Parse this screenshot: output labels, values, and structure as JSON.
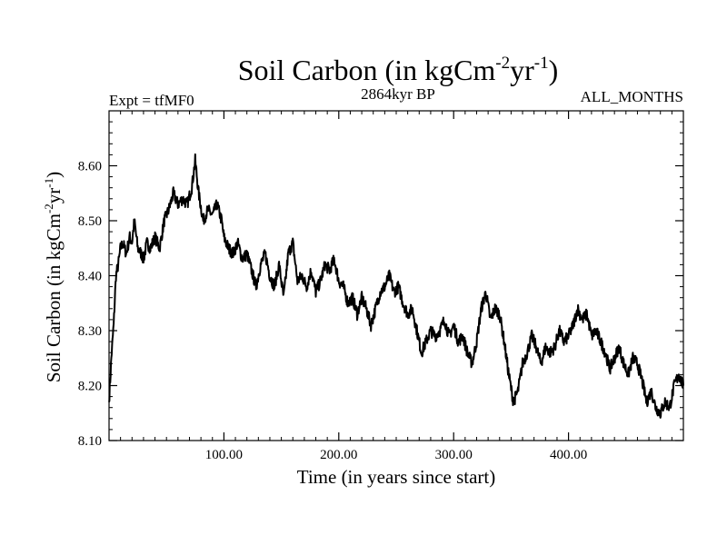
{
  "chart_data": {
    "type": "line",
    "title": {
      "main": "Soil Carbon (in kgCm",
      "sup1": "-2",
      "mid": "yr",
      "sup2": "-1",
      "end": ")"
    },
    "subtitle_left": "Expt = tfMF0",
    "subtitle_center": "2864kyr BP",
    "subtitle_right": "ALL_MONTHS",
    "xlabel": "Time (in years since start)",
    "ylabel": {
      "main": "Soil Carbon (in kgCm",
      "sup1": "-2",
      "mid": "yr",
      "sup2": "-1",
      "end": ")"
    },
    "xlim": [
      0,
      500
    ],
    "ylim": [
      8.1,
      8.7
    ],
    "xticks": [
      100,
      200,
      300,
      400
    ],
    "xtick_labels": [
      "100.00",
      "200.00",
      "300.00",
      "400.00"
    ],
    "yticks": [
      8.1,
      8.2,
      8.3,
      8.4,
      8.5,
      8.6
    ],
    "ytick_labels": [
      "8.10",
      "8.20",
      "8.30",
      "8.40",
      "8.50",
      "8.60"
    ],
    "grid": false,
    "series": [
      {
        "name": "Soil Carbon",
        "color": "#000000",
        "x": [
          0,
          2,
          4,
          6,
          8,
          10,
          12,
          15,
          18,
          20,
          22,
          25,
          28,
          30,
          33,
          36,
          40,
          44,
          48,
          52,
          56,
          60,
          64,
          68,
          72,
          75,
          78,
          82,
          86,
          90,
          94,
          98,
          100,
          104,
          108,
          112,
          116,
          120,
          124,
          128,
          132,
          136,
          140,
          144,
          148,
          152,
          156,
          160,
          164,
          168,
          172,
          176,
          180,
          184,
          188,
          192,
          196,
          200,
          204,
          208,
          212,
          216,
          220,
          224,
          228,
          232,
          236,
          240,
          244,
          248,
          252,
          256,
          260,
          264,
          268,
          272,
          276,
          280,
          284,
          288,
          292,
          296,
          300,
          304,
          308,
          312,
          316,
          320,
          324,
          328,
          332,
          336,
          340,
          344,
          348,
          352,
          356,
          360,
          364,
          368,
          372,
          376,
          380,
          384,
          388,
          392,
          396,
          400,
          404,
          408,
          412,
          416,
          420,
          424,
          428,
          432,
          436,
          440,
          444,
          448,
          452,
          456,
          460,
          464,
          468,
          472,
          476,
          480,
          484,
          488,
          492,
          496,
          500
        ],
        "values": [
          8.17,
          8.25,
          8.31,
          8.4,
          8.42,
          8.45,
          8.46,
          8.44,
          8.47,
          8.46,
          8.5,
          8.45,
          8.44,
          8.43,
          8.46,
          8.45,
          8.47,
          8.45,
          8.5,
          8.52,
          8.55,
          8.53,
          8.54,
          8.53,
          8.56,
          8.61,
          8.55,
          8.5,
          8.52,
          8.51,
          8.53,
          8.5,
          8.47,
          8.45,
          8.44,
          8.46,
          8.43,
          8.44,
          8.41,
          8.38,
          8.42,
          8.44,
          8.4,
          8.38,
          8.42,
          8.36,
          8.44,
          8.46,
          8.39,
          8.4,
          8.38,
          8.41,
          8.37,
          8.39,
          8.42,
          8.41,
          8.43,
          8.39,
          8.38,
          8.35,
          8.36,
          8.33,
          8.36,
          8.34,
          8.31,
          8.34,
          8.37,
          8.38,
          8.4,
          8.37,
          8.38,
          8.35,
          8.33,
          8.34,
          8.3,
          8.26,
          8.28,
          8.3,
          8.29,
          8.3,
          8.32,
          8.29,
          8.31,
          8.28,
          8.29,
          8.26,
          8.24,
          8.28,
          8.34,
          8.37,
          8.32,
          8.34,
          8.33,
          8.28,
          8.22,
          8.17,
          8.19,
          8.24,
          8.26,
          8.29,
          8.27,
          8.24,
          8.27,
          8.26,
          8.27,
          8.3,
          8.28,
          8.29,
          8.31,
          8.34,
          8.32,
          8.33,
          8.29,
          8.3,
          8.28,
          8.26,
          8.23,
          8.25,
          8.27,
          8.24,
          8.22,
          8.25,
          8.24,
          8.21,
          8.17,
          8.19,
          8.16,
          8.15,
          8.17,
          8.16,
          8.2,
          8.22,
          8.2
        ]
      }
    ]
  }
}
